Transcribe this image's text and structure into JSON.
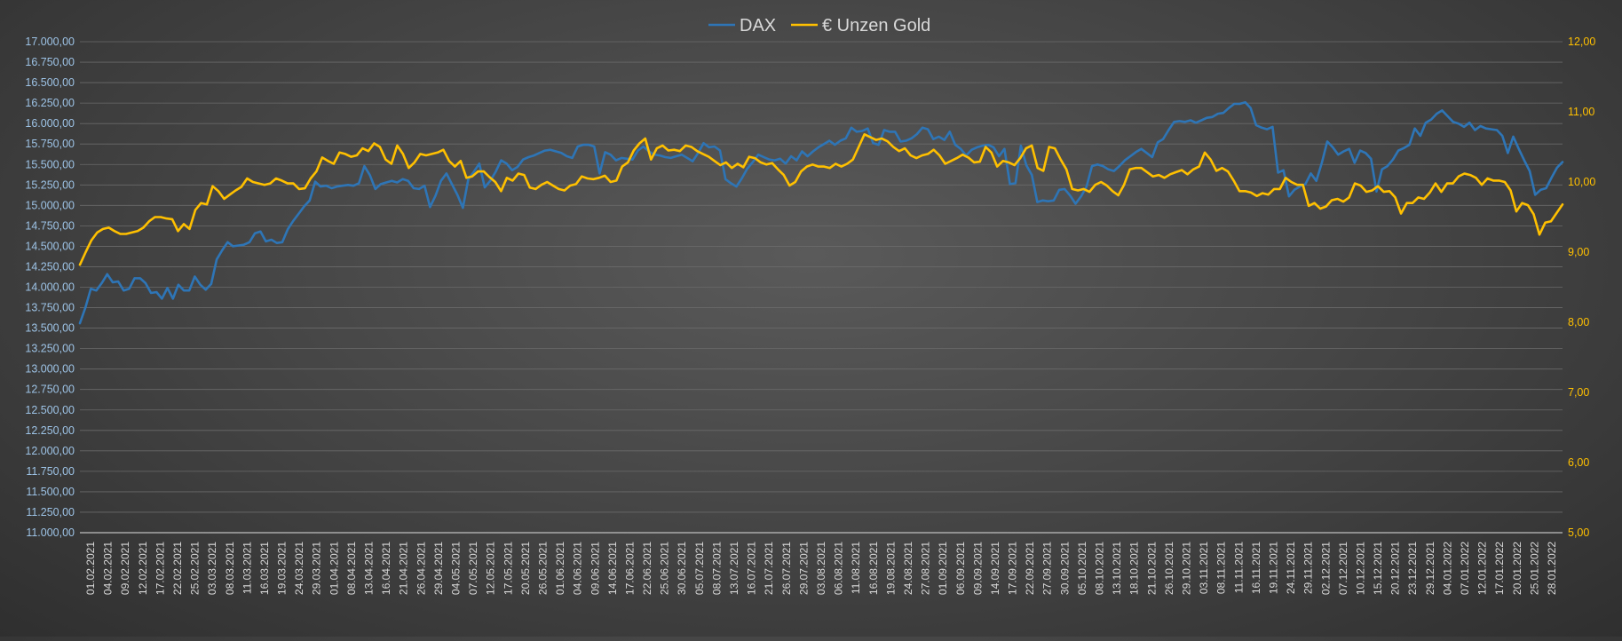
{
  "chart_data": {
    "type": "line",
    "title": "",
    "legend_position": "top-center",
    "grid": true,
    "colors": {
      "dax": "#2e75b6",
      "gold": "#ffc000",
      "gridline": "#6a6a6a",
      "left_tick_text": "#9dc3e6",
      "right_tick_text": "#ffc000",
      "x_tick_text": "#d9d9d9"
    },
    "y_left": {
      "min": 11000,
      "max": 17000,
      "step": 250,
      "tick_labels": [
        "11.000,00",
        "11.250,00",
        "11.500,00",
        "11.750,00",
        "12.000,00",
        "12.250,00",
        "12.500,00",
        "12.750,00",
        "13.000,00",
        "13.250,00",
        "13.500,00",
        "13.750,00",
        "14.000,00",
        "14.250,00",
        "14.500,00",
        "14.750,00",
        "15.000,00",
        "15.250,00",
        "15.500,00",
        "15.750,00",
        "16.000,00",
        "16.250,00",
        "16.500,00",
        "16.750,00",
        "17.000,00"
      ]
    },
    "y_right": {
      "min": 5,
      "max": 12,
      "step": 1,
      "tick_labels": [
        "5,00",
        "6,00",
        "7,00",
        "8,00",
        "9,00",
        "10,00",
        "11,00",
        "12,00"
      ]
    },
    "x_tick_labels": [
      "01.02.2021",
      "04.02.2021",
      "09.02.2021",
      "12.02.2021",
      "17.02.2021",
      "22.02.2021",
      "25.02.2021",
      "03.03.2021",
      "08.03.2021",
      "11.03.2021",
      "16.03.2021",
      "19.03.2021",
      "24.03.2021",
      "29.03.2021",
      "01.04.2021",
      "08.04.2021",
      "13.04.2021",
      "16.04.2021",
      "21.04.2021",
      "26.04.2021",
      "29.04.2021",
      "04.05.2021",
      "07.05.2021",
      "12.05.2021",
      "17.05.2021",
      "20.05.2021",
      "26.05.2021",
      "01.06.2021",
      "04.06.2021",
      "09.06.2021",
      "14.06.2021",
      "17.06.2021",
      "22.06.2021",
      "25.06.2021",
      "30.06.2021",
      "05.07.2021",
      "08.07.2021",
      "13.07.2021",
      "16.07.2021",
      "21.07.2021",
      "26.07.2021",
      "29.07.2021",
      "03.08.2021",
      "06.08.2021",
      "11.08.2021",
      "16.08.2021",
      "19.08.2021",
      "24.08.2021",
      "27.08.2021",
      "01.09.2021",
      "06.09.2021",
      "09.09.2021",
      "14.09.2021",
      "17.09.2021",
      "22.09.2021",
      "27.09.2021",
      "30.09.2021",
      "05.10.2021",
      "08.10.2021",
      "13.10.2021",
      "18.10.2021",
      "21.10.2021",
      "26.10.2021",
      "29.10.2021",
      "03.11.2021",
      "08.11.2021",
      "11.11.2021",
      "16.11.2021",
      "19.11.2021",
      "24.11.2021",
      "29.11.2021",
      "02.12.2021",
      "07.12.2021",
      "10.12.2021",
      "15.12.2021",
      "20.12.2021",
      "23.12.2021",
      "29.12.2021",
      "04.01.2022",
      "07.01.2022",
      "12.01.2022",
      "17.01.2022",
      "20.01.2022",
      "25.01.2022",
      "28.01.2022"
    ],
    "series": [
      {
        "name": "DAX",
        "axis": "left",
        "values": [
          13560,
          13750,
          13980,
          13960,
          14050,
          14160,
          14060,
          14070,
          13960,
          13980,
          14110,
          14110,
          14050,
          13930,
          13940,
          13860,
          13990,
          13860,
          14030,
          13960,
          13960,
          14130,
          14030,
          13970,
          14040,
          14340,
          14450,
          14550,
          14500,
          14510,
          14520,
          14550,
          14660,
          14680,
          14560,
          14580,
          14540,
          14550,
          14710,
          14810,
          14900,
          14990,
          15060,
          15290,
          15230,
          15240,
          15210,
          15230,
          15240,
          15250,
          15240,
          15270,
          15480,
          15370,
          15200,
          15260,
          15280,
          15300,
          15280,
          15320,
          15300,
          15210,
          15200,
          15240,
          14980,
          15120,
          15300,
          15390,
          15260,
          15130,
          14970,
          15320,
          15410,
          15510,
          15220,
          15300,
          15410,
          15550,
          15510,
          15430,
          15470,
          15560,
          15590,
          15610,
          15640,
          15670,
          15680,
          15660,
          15640,
          15600,
          15580,
          15720,
          15740,
          15740,
          15720,
          15390,
          15650,
          15620,
          15550,
          15580,
          15570,
          15560,
          15670,
          15720,
          15660,
          15620,
          15610,
          15590,
          15580,
          15600,
          15620,
          15580,
          15540,
          15640,
          15760,
          15710,
          15720,
          15670,
          15320,
          15270,
          15230,
          15330,
          15450,
          15530,
          15620,
          15590,
          15560,
          15550,
          15570,
          15510,
          15600,
          15550,
          15660,
          15600,
          15660,
          15710,
          15750,
          15790,
          15740,
          15790,
          15820,
          15950,
          15900,
          15910,
          15940,
          15760,
          15740,
          15920,
          15900,
          15900,
          15780,
          15790,
          15820,
          15870,
          15950,
          15930,
          15810,
          15840,
          15800,
          15900,
          15740,
          15690,
          15610,
          15680,
          15710,
          15730,
          15740,
          15710,
          15600,
          15690,
          15260,
          15270,
          15730,
          15490,
          15370,
          15040,
          15060,
          15050,
          15060,
          15190,
          15200,
          15120,
          15020,
          15110,
          15230,
          15480,
          15500,
          15480,
          15440,
          15420,
          15480,
          15550,
          15600,
          15650,
          15690,
          15640,
          15590,
          15770,
          15810,
          15920,
          16020,
          16030,
          16020,
          16040,
          16010,
          16040,
          16070,
          16080,
          16120,
          16130,
          16190,
          16240,
          16240,
          16260,
          16190,
          15980,
          15950,
          15930,
          15960,
          15400,
          15430,
          15110,
          15190,
          15230,
          15260,
          15390,
          15300,
          15520,
          15780,
          15710,
          15620,
          15660,
          15690,
          15520,
          15670,
          15640,
          15570,
          15170,
          15440,
          15480,
          15560,
          15670,
          15700,
          15740,
          15940,
          15850,
          16010,
          16050,
          16120,
          16160,
          16090,
          16020,
          16000,
          15960,
          16010,
          15920,
          15970,
          15940,
          15930,
          15920,
          15850,
          15640,
          15840,
          15690,
          15550,
          15420,
          15130,
          15190,
          15210,
          15340,
          15460,
          15530
        ],
        "ratings_note": ""
      },
      {
        "name": "€ Unzen Gold",
        "axis": "right",
        "values": [
          8.82,
          9.0,
          9.17,
          9.28,
          9.33,
          9.35,
          9.3,
          9.26,
          9.26,
          9.28,
          9.3,
          9.35,
          9.44,
          9.5,
          9.5,
          9.48,
          9.47,
          9.3,
          9.4,
          9.33,
          9.6,
          9.7,
          9.68,
          9.94,
          9.87,
          9.76,
          9.82,
          9.88,
          9.93,
          10.05,
          10.0,
          9.98,
          9.96,
          9.98,
          10.05,
          10.02,
          9.98,
          9.98,
          9.9,
          9.91,
          10.05,
          10.15,
          10.35,
          10.3,
          10.26,
          10.42,
          10.4,
          10.36,
          10.38,
          10.48,
          10.44,
          10.55,
          10.5,
          10.32,
          10.26,
          10.52,
          10.4,
          10.2,
          10.28,
          10.4,
          10.38,
          10.4,
          10.42,
          10.46,
          10.3,
          10.22,
          10.3,
          10.06,
          10.08,
          10.15,
          10.15,
          10.07,
          10.0,
          9.87,
          10.06,
          10.02,
          10.12,
          10.1,
          9.92,
          9.9,
          9.96,
          10.0,
          9.95,
          9.9,
          9.88,
          9.95,
          9.97,
          10.08,
          10.05,
          10.04,
          10.06,
          10.09,
          10.0,
          10.02,
          10.22,
          10.28,
          10.45,
          10.55,
          10.62,
          10.32,
          10.48,
          10.52,
          10.45,
          10.46,
          10.44,
          10.52,
          10.5,
          10.44,
          10.4,
          10.36,
          10.3,
          10.24,
          10.28,
          10.2,
          10.26,
          10.21,
          10.36,
          10.34,
          10.28,
          10.25,
          10.27,
          10.18,
          10.1,
          9.95,
          10.0,
          10.15,
          10.22,
          10.25,
          10.22,
          10.22,
          10.2,
          10.26,
          10.22,
          10.26,
          10.32,
          10.5,
          10.68,
          10.64,
          10.6,
          10.62,
          10.58,
          10.5,
          10.44,
          10.48,
          10.38,
          10.34,
          10.38,
          10.4,
          10.46,
          10.38,
          10.26,
          10.3,
          10.34,
          10.39,
          10.35,
          10.28,
          10.29,
          10.5,
          10.42,
          10.22,
          10.3,
          10.28,
          10.24,
          10.34,
          10.48,
          10.52,
          10.2,
          10.16,
          10.5,
          10.48,
          10.32,
          10.18,
          9.9,
          9.88,
          9.9,
          9.86,
          9.96,
          10.0,
          9.95,
          9.87,
          9.81,
          9.96,
          10.18,
          10.2,
          10.2,
          10.14,
          10.08,
          10.1,
          10.06,
          10.11,
          10.14,
          10.17,
          10.11,
          10.18,
          10.22,
          10.42,
          10.32,
          10.16,
          10.2,
          10.15,
          10.02,
          9.87,
          9.87,
          9.85,
          9.8,
          9.84,
          9.82,
          9.9,
          9.9,
          10.06,
          10.0,
          9.96,
          9.96,
          9.66,
          9.7,
          9.62,
          9.65,
          9.74,
          9.76,
          9.72,
          9.78,
          9.98,
          9.95,
          9.86,
          9.88,
          9.94,
          9.86,
          9.87,
          9.78,
          9.55,
          9.7,
          9.7,
          9.78,
          9.76,
          9.85,
          9.98,
          9.86,
          9.98,
          9.98,
          10.08,
          10.12,
          10.1,
          10.06,
          9.96,
          10.05,
          10.02,
          10.02,
          10.0,
          9.88,
          9.58,
          9.7,
          9.67,
          9.54,
          9.25,
          9.42,
          9.44,
          9.56,
          9.68
        ]
      }
    ]
  }
}
